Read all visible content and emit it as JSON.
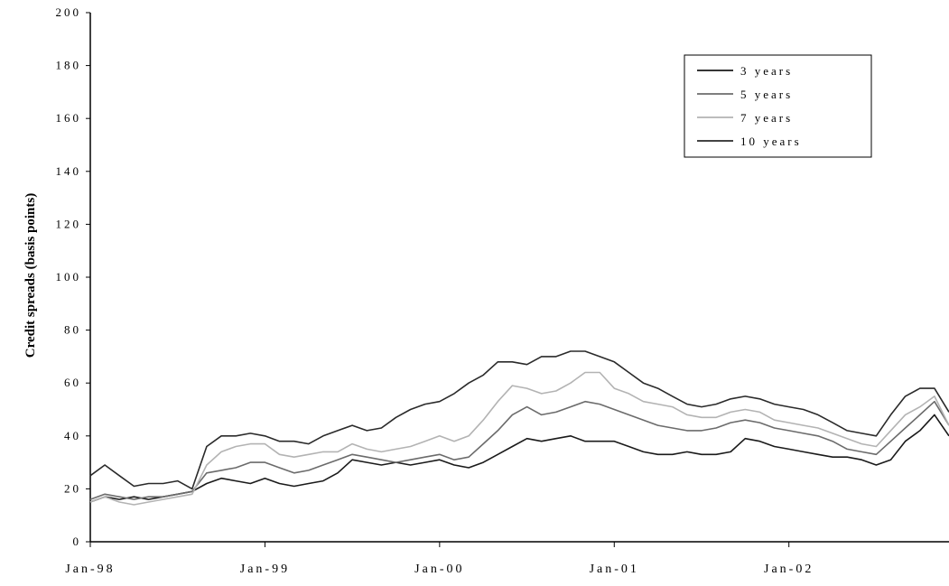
{
  "chart_data": {
    "type": "line",
    "title": "",
    "xlabel": "",
    "ylabel": "Credit spreads (basis points)",
    "ylim": [
      0,
      200
    ],
    "yticks": [
      0,
      20,
      40,
      60,
      80,
      100,
      120,
      140,
      160,
      180,
      200
    ],
    "ytick_labels": [
      "0",
      "20",
      "40",
      "60",
      "80",
      "100",
      "120",
      "140",
      "160",
      "180",
      "200"
    ],
    "xlim": [
      "1998-01",
      "2002-12"
    ],
    "xticks": [
      "1998-01",
      "1999-01",
      "2000-01",
      "2001-01",
      "2002-01"
    ],
    "xtick_labels": [
      "Jan-98",
      "Jan-99",
      "Jan-00",
      "Jan-01",
      "Jan-02"
    ],
    "grid": false,
    "legend_position": "top-right",
    "x": [
      "1998-01",
      "1998-02",
      "1998-03",
      "1998-04",
      "1998-05",
      "1998-06",
      "1998-07",
      "1998-08",
      "1998-09",
      "1998-10",
      "1998-11",
      "1998-12",
      "1999-01",
      "1999-02",
      "1999-03",
      "1999-04",
      "1999-05",
      "1999-06",
      "1999-07",
      "1999-08",
      "1999-09",
      "1999-10",
      "1999-11",
      "1999-12",
      "2000-01",
      "2000-02",
      "2000-03",
      "2000-04",
      "2000-05",
      "2000-06",
      "2000-07",
      "2000-08",
      "2000-09",
      "2000-10",
      "2000-11",
      "2000-12",
      "2001-01",
      "2001-02",
      "2001-03",
      "2001-04",
      "2001-05",
      "2001-06",
      "2001-07",
      "2001-08",
      "2001-09",
      "2001-10",
      "2001-11",
      "2001-12",
      "2002-01",
      "2002-02",
      "2002-03",
      "2002-04",
      "2002-05",
      "2002-06",
      "2002-07",
      "2002-08",
      "2002-09",
      "2002-10",
      "2002-11",
      "2002-12"
    ],
    "series": [
      {
        "name": "3 years",
        "color": "#1a1a1a",
        "width": 1.6,
        "values": [
          15,
          17,
          16,
          17,
          16,
          17,
          18,
          19,
          22,
          24,
          23,
          22,
          24,
          22,
          21,
          22,
          23,
          26,
          31,
          30,
          29,
          30,
          29,
          30,
          31,
          29,
          28,
          30,
          33,
          36,
          39,
          38,
          39,
          40,
          38,
          38,
          38,
          36,
          34,
          33,
          33,
          34,
          33,
          33,
          34,
          39,
          38,
          36,
          35,
          34,
          33,
          32,
          32,
          31,
          29,
          31,
          38,
          42,
          48,
          40
        ]
      },
      {
        "name": "5 years",
        "color": "#6b6b6b",
        "width": 1.6,
        "values": [
          16,
          18,
          17,
          16,
          17,
          17,
          18,
          19,
          26,
          27,
          28,
          30,
          30,
          28,
          26,
          27,
          29,
          31,
          33,
          32,
          31,
          30,
          31,
          32,
          33,
          31,
          32,
          37,
          42,
          48,
          51,
          48,
          49,
          51,
          53,
          52,
          50,
          48,
          46,
          44,
          43,
          42,
          42,
          43,
          45,
          46,
          45,
          43,
          42,
          41,
          40,
          38,
          35,
          34,
          33,
          38,
          43,
          48,
          53,
          44
        ]
      },
      {
        "name": "7 years",
        "color": "#b3b3b3",
        "width": 1.6,
        "values": [
          15,
          17,
          15,
          14,
          15,
          16,
          17,
          18,
          29,
          34,
          36,
          37,
          37,
          33,
          32,
          33,
          34,
          34,
          37,
          35,
          34,
          35,
          36,
          38,
          40,
          38,
          40,
          46,
          53,
          59,
          58,
          56,
          57,
          60,
          64,
          64,
          58,
          56,
          53,
          52,
          51,
          48,
          47,
          47,
          49,
          50,
          49,
          46,
          45,
          44,
          43,
          41,
          39,
          37,
          36,
          42,
          48,
          51,
          55,
          44
        ]
      },
      {
        "name": "10 years",
        "color": "#2a2a2a",
        "width": 1.6,
        "values": [
          25,
          29,
          25,
          21,
          22,
          22,
          23,
          20,
          36,
          40,
          40,
          41,
          40,
          38,
          38,
          37,
          40,
          42,
          44,
          42,
          43,
          47,
          50,
          52,
          53,
          56,
          60,
          63,
          68,
          68,
          67,
          70,
          70,
          72,
          72,
          70,
          68,
          64,
          60,
          58,
          55,
          52,
          51,
          52,
          54,
          55,
          54,
          52,
          51,
          50,
          48,
          45,
          42,
          41,
          40,
          48,
          55,
          58,
          58,
          49
        ]
      }
    ]
  }
}
